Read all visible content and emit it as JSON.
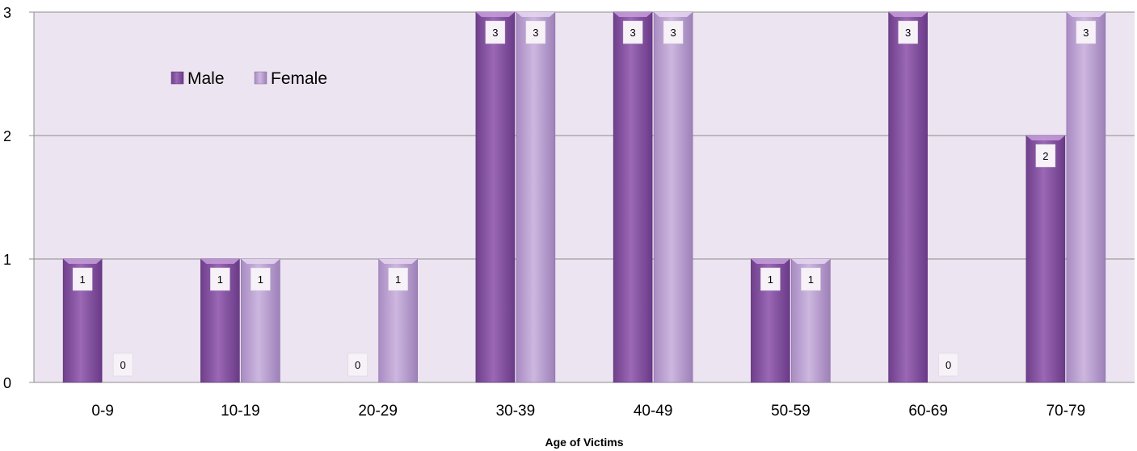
{
  "chart_data": {
    "type": "bar",
    "categories": [
      "0-9",
      "10-19",
      "20-29",
      "30-39",
      "40-49",
      "50-59",
      "60-69",
      "70-79"
    ],
    "series": [
      {
        "name": "Male",
        "values": [
          1,
          1,
          0,
          3,
          3,
          1,
          3,
          2
        ],
        "color": "#8e5aa8"
      },
      {
        "name": "Female",
        "values": [
          0,
          1,
          1,
          3,
          3,
          1,
          0,
          3
        ],
        "color": "#b9a0d0"
      }
    ],
    "title": "",
    "xlabel": "Age of Victims",
    "ylabel": "",
    "ylim": [
      0,
      3
    ],
    "yticks": [
      0,
      1,
      2,
      3
    ],
    "grid": true,
    "legend_position": "top-left",
    "data_labels": true,
    "plot_background": "#ece4f0"
  }
}
